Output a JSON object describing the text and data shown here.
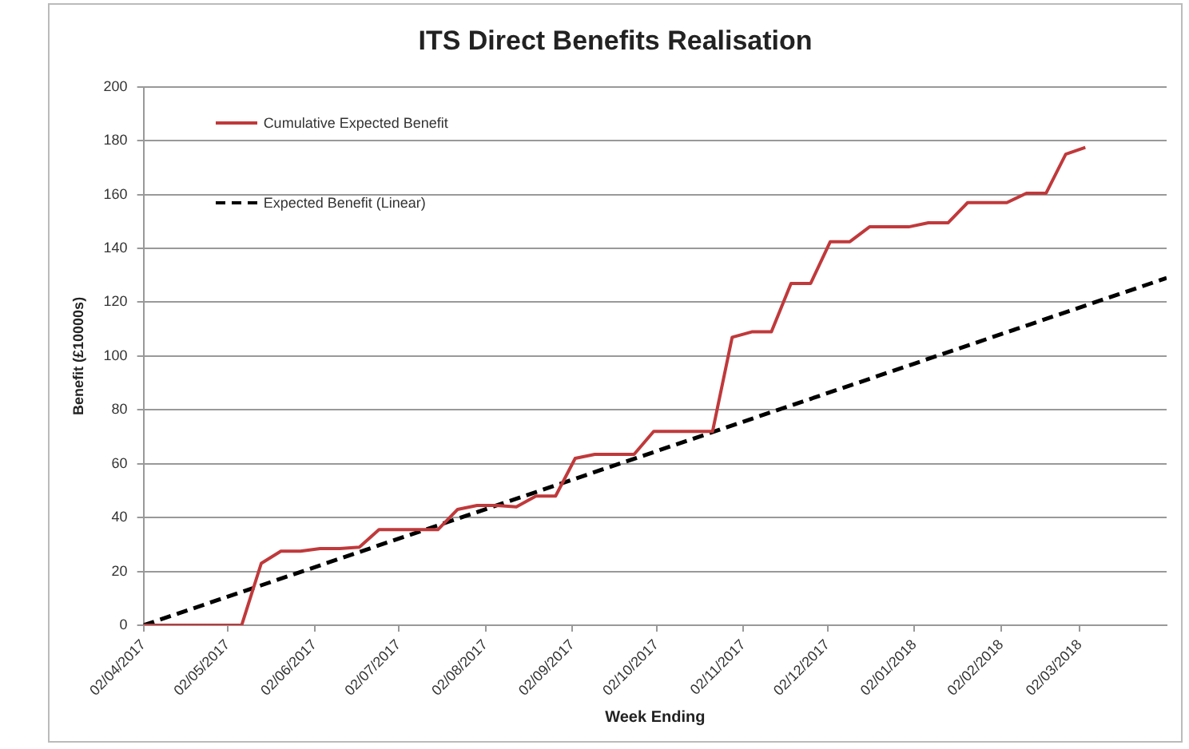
{
  "chart_data": {
    "type": "line",
    "title": "ITS Direct Benefits Realisation",
    "xlabel": "Week Ending",
    "ylabel": "Benefit (£10000s)",
    "x": [
      "2017-04-02",
      "2017-04-09",
      "2017-04-16",
      "2017-04-23",
      "2017-04-30",
      "2017-05-07",
      "2017-05-14",
      "2017-05-21",
      "2017-05-28",
      "2017-06-04",
      "2017-06-11",
      "2017-06-18",
      "2017-06-25",
      "2017-07-02",
      "2017-07-09",
      "2017-07-16",
      "2017-07-23",
      "2017-07-30",
      "2017-08-06",
      "2017-08-13",
      "2017-08-20",
      "2017-08-27",
      "2017-09-03",
      "2017-09-10",
      "2017-09-17",
      "2017-09-24",
      "2017-10-01",
      "2017-10-08",
      "2017-10-15",
      "2017-10-22",
      "2017-10-29",
      "2017-11-05",
      "2017-11-12",
      "2017-11-19",
      "2017-11-26",
      "2017-12-03",
      "2017-12-10",
      "2017-12-17",
      "2017-12-24",
      "2017-12-31",
      "2018-01-07",
      "2018-01-14",
      "2018-01-21",
      "2018-01-28",
      "2018-02-04",
      "2018-02-11",
      "2018-02-18",
      "2018-02-25",
      "2018-03-04"
    ],
    "series": [
      {
        "name": "Cumulative Expected Benefit",
        "color": "#c0393b",
        "line_style": "solid",
        "values": [
          0,
          0,
          0,
          0,
          0,
          0,
          23,
          27.5,
          27.5,
          28.5,
          28.5,
          29,
          35.5,
          35.5,
          35.5,
          35.5,
          43,
          44.5,
          44.5,
          44,
          48,
          48,
          62,
          63.5,
          63.5,
          63.5,
          72,
          72,
          72,
          72,
          107,
          109,
          109,
          127,
          127,
          142.5,
          142.5,
          148,
          148,
          148,
          149.5,
          149.5,
          157,
          157,
          157,
          160.5,
          160.5,
          175,
          177.5
        ]
      },
      {
        "name": "Expected Benefit (Linear)",
        "color": "#000000",
        "line_style": "dashed",
        "x": [
          "2017-04-02",
          "2018-04-02"
        ],
        "values": [
          0,
          129
        ]
      }
    ],
    "xlim": [
      "2017-04-02",
      "2018-04-02"
    ],
    "xticks": [
      {
        "value": "2017-04-02",
        "label": "02/04/2017"
      },
      {
        "value": "2017-05-02",
        "label": "02/05/2017"
      },
      {
        "value": "2017-06-02",
        "label": "02/06/2017"
      },
      {
        "value": "2017-07-02",
        "label": "02/07/2017"
      },
      {
        "value": "2017-08-02",
        "label": "02/08/2017"
      },
      {
        "value": "2017-09-02",
        "label": "02/09/2017"
      },
      {
        "value": "2017-10-02",
        "label": "02/10/2017"
      },
      {
        "value": "2017-11-02",
        "label": "02/11/2017"
      },
      {
        "value": "2017-12-02",
        "label": "02/12/2017"
      },
      {
        "value": "2018-01-02",
        "label": "02/01/2018"
      },
      {
        "value": "2018-02-02",
        "label": "02/02/2018"
      },
      {
        "value": "2018-03-02",
        "label": "02/03/2018"
      }
    ],
    "ylim": [
      0,
      200
    ],
    "yticks": [
      0,
      20,
      40,
      60,
      80,
      100,
      120,
      140,
      160,
      180,
      200
    ],
    "grid": "y",
    "legend": "top left",
    "marker": "none"
  }
}
